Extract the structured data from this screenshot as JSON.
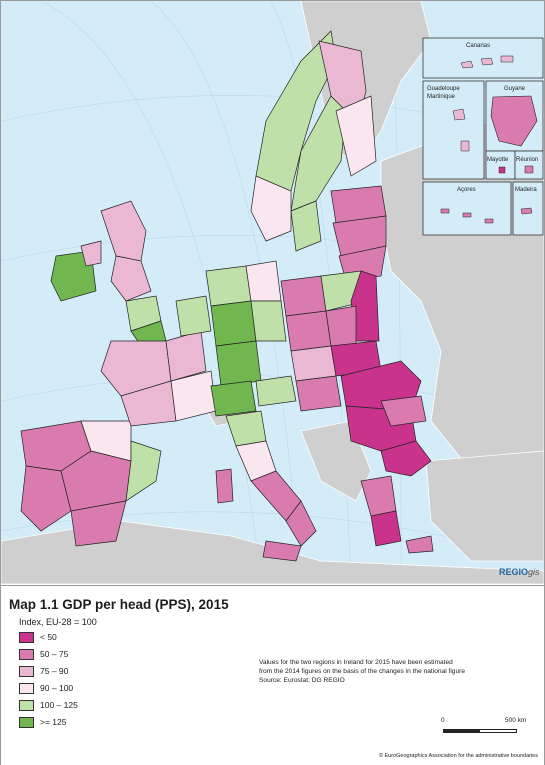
{
  "map": {
    "title": "Map 1.1 GDP per head (PPS), 2015",
    "index_label": "Index, EU-28 = 100",
    "legend": [
      {
        "label": "< 50",
        "color": "#c9338b"
      },
      {
        "label": "50 – 75",
        "color": "#d97bae"
      },
      {
        "label": "75 – 90",
        "color": "#ebb8d4"
      },
      {
        "label": "90 – 100",
        "color": "#f9e6ef"
      },
      {
        "label": "100 – 125",
        "color": "#bfe0a8"
      },
      {
        "label": ">= 125",
        "color": "#6fb74e"
      }
    ],
    "note": [
      "Values for the two regions in Ireland for 2015 have been estimated",
      "from the 2014 figures on the basis of the changes in the national figure",
      "Source: Eurostat, DG REGIO"
    ],
    "scale": {
      "zero": "0",
      "max": "500 km"
    },
    "copyright": "© EuroGeographics Association for the administrative boundaries",
    "logo_main": "REGIO",
    "logo_suffix": "gis",
    "insets": {
      "canarias": "Canarias",
      "guadeloupe": "Guadeloupe",
      "martinique": "Martinique",
      "guyane": "Guyane",
      "mayotte": "Mayotte",
      "reunion": "Réunion",
      "acores": "Açores",
      "madeira": "Madeira"
    }
  }
}
